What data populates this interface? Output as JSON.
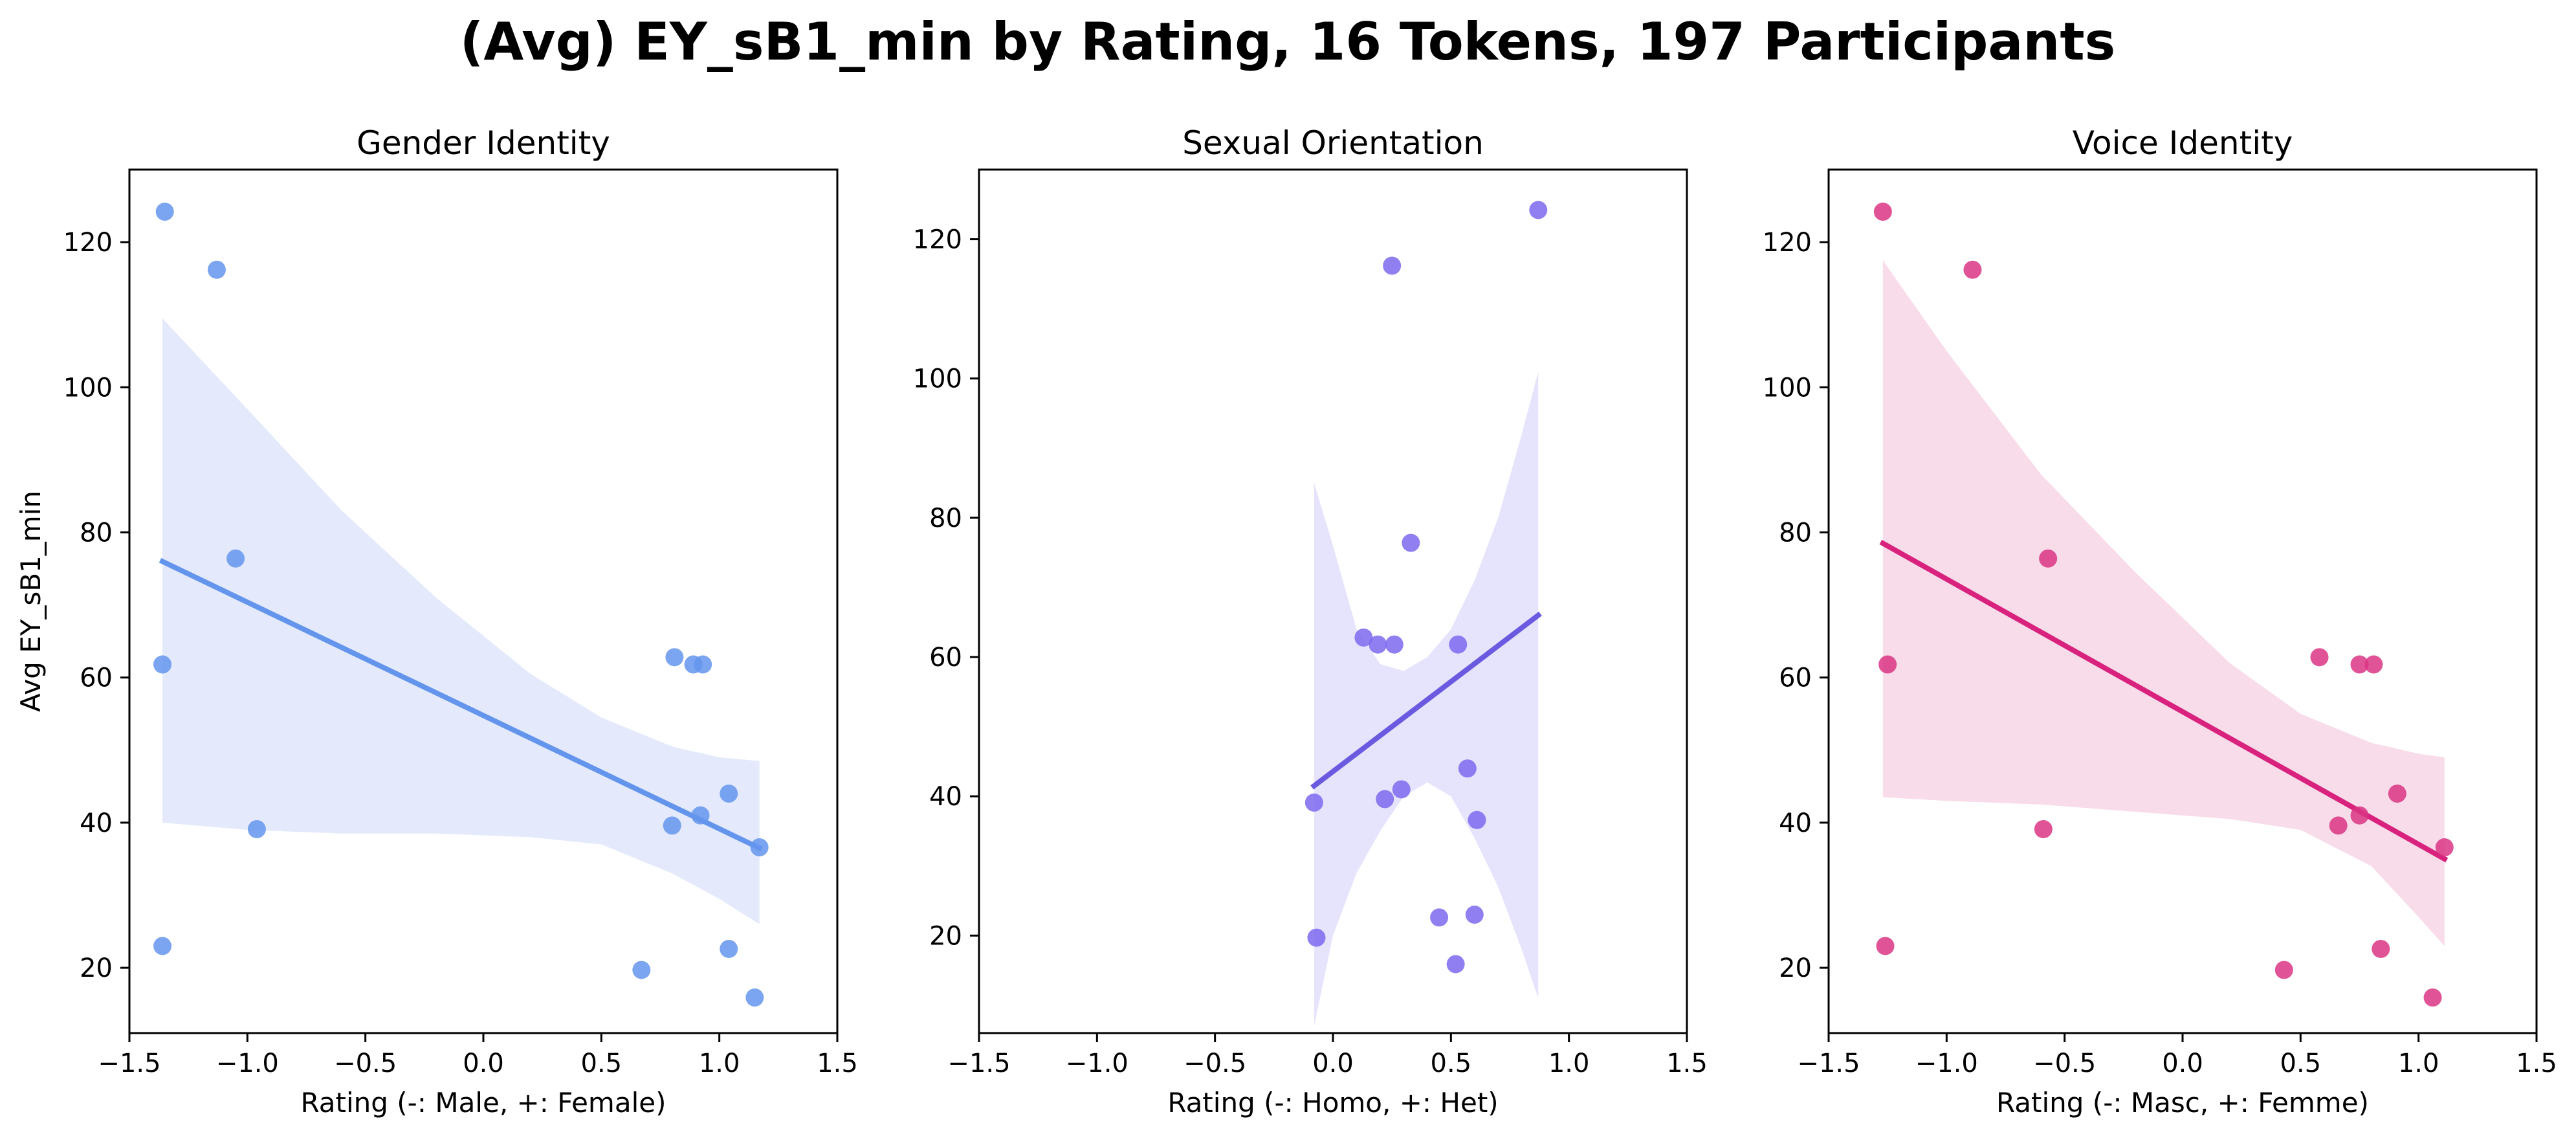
{
  "figure": {
    "title": "(Avg) EY_sB1_min by Rating, 16 Tokens, 197 Participants"
  },
  "chart_data": [
    {
      "type": "scatter",
      "title": "Gender Identity",
      "xlabel": "Rating (-: Male, +: Female)",
      "ylabel": "Avg EY_sB1_min",
      "xlim": [
        -1.5,
        1.5
      ],
      "ylim": [
        11,
        130
      ],
      "xticks": [
        -1.5,
        -1.0,
        -0.5,
        0.0,
        0.5,
        1.0,
        1.5
      ],
      "xtick_labels": [
        "−1.5",
        "−1.0",
        "−0.5",
        "0.0",
        "0.5",
        "1.0",
        "1.5"
      ],
      "yticks": [
        20,
        40,
        60,
        80,
        100,
        120
      ],
      "ytick_labels": [
        "20",
        "40",
        "60",
        "80",
        "100",
        "120"
      ],
      "colors": {
        "point": "#6495ED",
        "line": "#6495ED",
        "band": "#E4EAFC"
      },
      "points": [
        {
          "x": -1.35,
          "y": 124.2
        },
        {
          "x": -1.13,
          "y": 116.2
        },
        {
          "x": -1.05,
          "y": 76.4
        },
        {
          "x": -1.36,
          "y": 61.8
        },
        {
          "x": -0.96,
          "y": 39.1
        },
        {
          "x": -1.36,
          "y": 23.0
        },
        {
          "x": 0.81,
          "y": 62.8
        },
        {
          "x": 0.89,
          "y": 61.8
        },
        {
          "x": 0.93,
          "y": 61.8
        },
        {
          "x": 0.8,
          "y": 39.6
        },
        {
          "x": 0.92,
          "y": 41.0
        },
        {
          "x": 1.04,
          "y": 44.0
        },
        {
          "x": 1.17,
          "y": 36.6
        },
        {
          "x": 1.04,
          "y": 22.6
        },
        {
          "x": 0.67,
          "y": 19.7
        },
        {
          "x": 1.15,
          "y": 15.9
        }
      ],
      "regression": {
        "x": [
          -1.36,
          1.17
        ],
        "y": [
          76.0,
          36.5
        ]
      },
      "ci_band": {
        "x": [
          -1.36,
          -1.0,
          -0.6,
          -0.2,
          0.2,
          0.5,
          0.8,
          1.0,
          1.17
        ],
        "upper": [
          109.5,
          97.0,
          83.0,
          71.0,
          60.5,
          54.5,
          50.5,
          49.0,
          48.5
        ],
        "lower": [
          40.0,
          39.0,
          38.5,
          38.5,
          38.0,
          37.0,
          33.0,
          29.5,
          26.0
        ]
      }
    },
    {
      "type": "scatter",
      "title": "Sexual Orientation",
      "xlabel": "Rating (-: Homo, +: Het)",
      "ylabel": "",
      "xlim": [
        -1.5,
        1.5
      ],
      "ylim": [
        6,
        130
      ],
      "xticks": [
        -1.5,
        -1.0,
        -0.5,
        0.0,
        0.5,
        1.0,
        1.5
      ],
      "xtick_labels": [
        "−1.5",
        "−1.0",
        "−0.5",
        "0.0",
        "0.5",
        "1.0",
        "1.5"
      ],
      "yticks": [
        20,
        40,
        60,
        80,
        100,
        120
      ],
      "ytick_labels": [
        "20",
        "40",
        "60",
        "80",
        "100",
        "120"
      ],
      "colors": {
        "point": "#7B68EE",
        "line": "#6A5ADF",
        "band": "#E6E3FC"
      },
      "points": [
        {
          "x": 0.87,
          "y": 124.2
        },
        {
          "x": 0.25,
          "y": 116.2
        },
        {
          "x": 0.33,
          "y": 76.4
        },
        {
          "x": 0.13,
          "y": 62.8
        },
        {
          "x": 0.19,
          "y": 61.8
        },
        {
          "x": 0.26,
          "y": 61.8
        },
        {
          "x": 0.53,
          "y": 61.8
        },
        {
          "x": 0.57,
          "y": 44.0
        },
        {
          "x": 0.29,
          "y": 41.0
        },
        {
          "x": 0.22,
          "y": 39.6
        },
        {
          "x": -0.08,
          "y": 39.1
        },
        {
          "x": 0.61,
          "y": 36.6
        },
        {
          "x": 0.45,
          "y": 22.6
        },
        {
          "x": 0.6,
          "y": 23.0
        },
        {
          "x": -0.07,
          "y": 19.7
        },
        {
          "x": 0.52,
          "y": 15.9
        }
      ],
      "regression": {
        "x": [
          -0.08,
          0.87
        ],
        "y": [
          41.5,
          66.0
        ]
      },
      "ci_band": {
        "x": [
          -0.08,
          0.0,
          0.1,
          0.2,
          0.3,
          0.4,
          0.5,
          0.6,
          0.7,
          0.8,
          0.87
        ],
        "upper": [
          85.0,
          76.0,
          64.0,
          59.0,
          58.0,
          60.0,
          64.0,
          71.0,
          80.0,
          92.0,
          101.0
        ],
        "lower": [
          7.0,
          20.0,
          29.0,
          35.0,
          40.0,
          42.0,
          40.0,
          34.0,
          27.0,
          18.0,
          11.0
        ]
      }
    },
    {
      "type": "scatter",
      "title": "Voice Identity",
      "xlabel": "Rating (-: Masc, +: Femme)",
      "ylabel": "",
      "xlim": [
        -1.5,
        1.5
      ],
      "ylim": [
        11,
        130
      ],
      "xticks": [
        -1.5,
        -1.0,
        -0.5,
        0.0,
        0.5,
        1.0,
        1.5
      ],
      "xtick_labels": [
        "−1.5",
        "−1.0",
        "−0.5",
        "0.0",
        "0.5",
        "1.0",
        "1.5"
      ],
      "yticks": [
        20,
        40,
        60,
        80,
        100,
        120
      ],
      "ytick_labels": [
        "20",
        "40",
        "60",
        "80",
        "100",
        "120"
      ],
      "colors": {
        "point": "#DB3584",
        "line": "#D8227E",
        "band": "#F8DCEA"
      },
      "points": [
        {
          "x": -1.27,
          "y": 124.2
        },
        {
          "x": -0.89,
          "y": 116.2
        },
        {
          "x": -0.57,
          "y": 76.4
        },
        {
          "x": -1.25,
          "y": 61.8
        },
        {
          "x": -0.59,
          "y": 39.1
        },
        {
          "x": -1.26,
          "y": 23.0
        },
        {
          "x": 0.58,
          "y": 62.8
        },
        {
          "x": 0.75,
          "y": 61.8
        },
        {
          "x": 0.81,
          "y": 61.8
        },
        {
          "x": 0.66,
          "y": 39.6
        },
        {
          "x": 0.75,
          "y": 41.0
        },
        {
          "x": 0.91,
          "y": 44.0
        },
        {
          "x": 1.11,
          "y": 36.6
        },
        {
          "x": 0.84,
          "y": 22.6
        },
        {
          "x": 0.43,
          "y": 19.7
        },
        {
          "x": 1.06,
          "y": 15.9
        }
      ],
      "regression": {
        "x": [
          -1.27,
          1.11
        ],
        "y": [
          78.5,
          35.0
        ]
      },
      "ci_band": {
        "x": [
          -1.27,
          -1.0,
          -0.6,
          -0.2,
          0.2,
          0.5,
          0.8,
          1.0,
          1.11
        ],
        "upper": [
          117.5,
          105.0,
          88.0,
          74.5,
          62.0,
          55.0,
          51.0,
          49.5,
          49.0
        ],
        "lower": [
          43.5,
          43.0,
          42.5,
          41.5,
          40.5,
          39.0,
          34.0,
          27.0,
          23.0
        ]
      }
    }
  ]
}
